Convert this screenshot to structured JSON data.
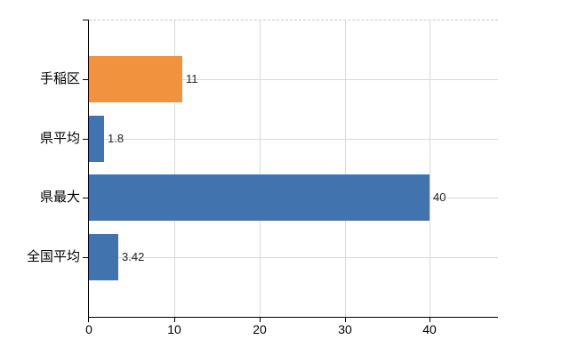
{
  "chart_data": {
    "type": "bar",
    "orientation": "horizontal",
    "title": "",
    "xlabel": "",
    "ylabel": "",
    "categories": [
      "手稲区",
      "県平均",
      "県最大",
      "全国平均"
    ],
    "values": [
      11,
      1.8,
      40,
      3.42
    ],
    "value_labels": [
      "11",
      "1.8",
      "40",
      "3.42"
    ],
    "bar_colors": [
      "#f0923e",
      "#4173ae",
      "#4173ae",
      "#4173ae"
    ],
    "x_tick_labels": [
      "0",
      "10",
      "20",
      "30",
      "40"
    ],
    "x_tick_values": [
      0,
      10,
      20,
      30,
      40
    ],
    "xlim": [
      0,
      48
    ],
    "grid": true,
    "legend": false,
    "colors": {
      "orange_bar": "#f0923e",
      "blue_bar": "#4173ae",
      "gridline": "#d7dad5",
      "top_border": "#c7cbc7",
      "axis": "#000000",
      "value_text": "#222222",
      "label_text": "#000000",
      "background": "#ffffff"
    }
  }
}
